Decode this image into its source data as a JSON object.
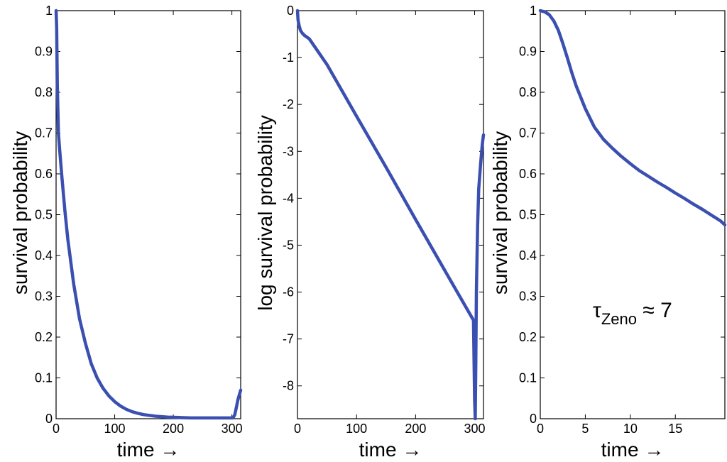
{
  "chart_data": [
    {
      "type": "line",
      "xlabel": "time →",
      "ylabel": "survival probability",
      "xlim": [
        0,
        315
      ],
      "ylim": [
        0,
        1
      ],
      "xticks": [
        0,
        100,
        200,
        300
      ],
      "xtick_labels": [
        "0",
        "100",
        "200",
        "300"
      ],
      "yticks": [
        0,
        0.1,
        0.2,
        0.3,
        0.4,
        0.5,
        0.6,
        0.7,
        0.8,
        0.9,
        1
      ],
      "ytick_labels": [
        "0",
        "0.1",
        "0.2",
        "0.3",
        "0.4",
        "0.5",
        "0.6",
        "0.7",
        "0.8",
        "0.9",
        "1"
      ],
      "grid": false,
      "color": "#3a4fb0",
      "series": [
        {
          "x": [
            0,
            1,
            2,
            4,
            6,
            10,
            15,
            20,
            30,
            40,
            50,
            60,
            70,
            80,
            90,
            100,
            110,
            120,
            130,
            140,
            150,
            170,
            190,
            210,
            230,
            250,
            270,
            290,
            302,
            305,
            308,
            310,
            312,
            314,
            315
          ],
          "y": [
            1.0,
            0.96,
            0.82,
            0.7,
            0.66,
            0.59,
            0.51,
            0.44,
            0.33,
            0.245,
            0.185,
            0.135,
            0.1,
            0.075,
            0.056,
            0.042,
            0.031,
            0.023,
            0.017,
            0.013,
            0.01,
            0.006,
            0.004,
            0.003,
            0.002,
            0.002,
            0.002,
            0.002,
            0.002,
            0.01,
            0.03,
            0.045,
            0.055,
            0.065,
            0.07
          ]
        }
      ]
    },
    {
      "type": "line",
      "xlabel": "time →",
      "ylabel": "log survival probability",
      "xlim": [
        0,
        315
      ],
      "ylim": [
        -8.7,
        0
      ],
      "xticks": [
        0,
        100,
        200,
        300
      ],
      "xtick_labels": [
        "0",
        "100",
        "200",
        "300"
      ],
      "yticks": [
        0,
        -1,
        -2,
        -3,
        -4,
        -5,
        -6,
        -7,
        -8
      ],
      "ytick_labels": [
        "0",
        "-1",
        "-2",
        "-3",
        "-4",
        "-5",
        "-6",
        "-7",
        "-8"
      ],
      "grid": false,
      "color": "#3a4fb0",
      "series": [
        {
          "x": [
            0,
            1,
            3,
            5,
            8,
            12,
            20,
            50,
            100,
            150,
            200,
            250,
            298,
            300,
            301,
            302,
            303,
            305,
            307,
            310,
            313,
            315
          ],
          "y": [
            0,
            -0.2,
            -0.33,
            -0.42,
            -0.48,
            -0.53,
            -0.6,
            -1.15,
            -2.25,
            -3.34,
            -4.45,
            -5.55,
            -6.6,
            -8.3,
            -8.7,
            -7.5,
            -6.0,
            -4.6,
            -3.8,
            -3.3,
            -2.85,
            -2.65
          ]
        }
      ]
    },
    {
      "type": "line",
      "xlabel": "time →",
      "ylabel": "survival probability",
      "xlim": [
        0,
        20.5
      ],
      "ylim": [
        0,
        1
      ],
      "xticks": [
        0,
        5,
        10,
        15
      ],
      "xtick_labels": [
        "0",
        "5",
        "10",
        "15"
      ],
      "yticks": [
        0,
        0.1,
        0.2,
        0.3,
        0.4,
        0.5,
        0.6,
        0.7,
        0.8,
        0.9,
        1
      ],
      "ytick_labels": [
        "0",
        "0.1",
        "0.2",
        "0.3",
        "0.4",
        "0.5",
        "0.6",
        "0.7",
        "0.8",
        "0.9",
        "1"
      ],
      "grid": false,
      "color": "#3a4fb0",
      "annotation": {
        "symbol": "τ",
        "subscript": "Zeno",
        "relation": " ≈ 7"
      },
      "series": [
        {
          "x": [
            0,
            0.5,
            1,
            1.5,
            2,
            2.5,
            3,
            3.5,
            4,
            5,
            6,
            7,
            8,
            9,
            10,
            11,
            12,
            13,
            14,
            15,
            16,
            17,
            18,
            19,
            20,
            20.5
          ],
          "y": [
            1.0,
            0.997,
            0.99,
            0.975,
            0.952,
            0.92,
            0.885,
            0.848,
            0.815,
            0.76,
            0.715,
            0.685,
            0.663,
            0.643,
            0.625,
            0.608,
            0.594,
            0.58,
            0.567,
            0.553,
            0.54,
            0.526,
            0.513,
            0.499,
            0.485,
            0.475
          ]
        }
      ]
    }
  ]
}
